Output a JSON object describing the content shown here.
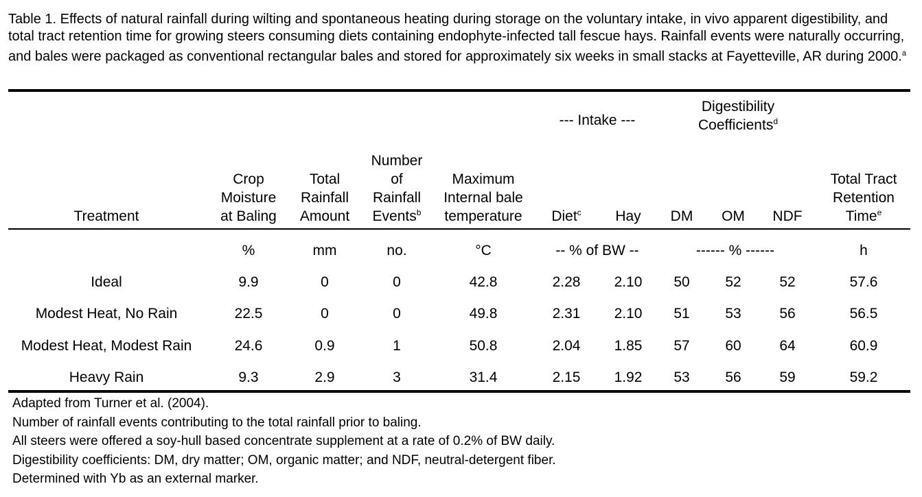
{
  "caption": {
    "text": "Table 1. Effects of natural rainfall during wilting and spontaneous heating during storage on the voluntary intake, in vivo apparent digestibility, and total tract retention time for growing steers consuming diets containing endophyte-infected tall fescue hays. Rainfall events were naturally occurring, and bales were packaged as conventional rectangular bales and stored for approximately six weeks in small stacks at Fayetteville, AR during 2000.",
    "sup": "a"
  },
  "group_headers": {
    "intake": "--- Intake ---",
    "digestibility_line1": "Digestibility",
    "digestibility_line2": "Coefficients",
    "digestibility_sup": "d"
  },
  "columns": {
    "treatment": "Treatment",
    "crop_moisture": [
      "Crop",
      "Moisture",
      "at Baling"
    ],
    "total_rainfall": [
      "Total",
      "Rainfall",
      "Amount"
    ],
    "rainfall_events": [
      "Number",
      "of",
      "Rainfall",
      "Events"
    ],
    "rainfall_events_sup": "b",
    "max_temp": [
      "Maximum",
      "Internal bale",
      "temperature"
    ],
    "diet": "Diet",
    "diet_sup": "c",
    "hay": "Hay",
    "dm": "DM",
    "om": "OM",
    "ndf": "NDF",
    "retention": [
      "Total Tract",
      "Retention",
      "Time"
    ],
    "retention_sup": "e"
  },
  "units": {
    "crop_moisture": "%",
    "total_rainfall": "mm",
    "rainfall_events": "no.",
    "max_temp": "°C",
    "intake": "-- % of BW --",
    "digestibility": "------ % ------",
    "retention": "h"
  },
  "rows": [
    {
      "treatment": "Ideal",
      "crop_moisture": "9.9",
      "total_rainfall": "0",
      "rainfall_events": "0",
      "max_temp": "42.8",
      "diet": "2.28",
      "hay": "2.10",
      "dm": "50",
      "om": "52",
      "ndf": "52",
      "retention": "57.6"
    },
    {
      "treatment": "Modest Heat, No Rain",
      "crop_moisture": "22.5",
      "total_rainfall": "0",
      "rainfall_events": "0",
      "max_temp": "49.8",
      "diet": "2.31",
      "hay": "2.10",
      "dm": "51",
      "om": "53",
      "ndf": "56",
      "retention": "56.5"
    },
    {
      "treatment": "Modest Heat, Modest Rain",
      "crop_moisture": "24.6",
      "total_rainfall": "0.9",
      "rainfall_events": "1",
      "max_temp": "50.8",
      "diet": "2.04",
      "hay": "1.85",
      "dm": "57",
      "om": "60",
      "ndf": "64",
      "retention": "60.9"
    },
    {
      "treatment": "Heavy Rain",
      "crop_moisture": "9.3",
      "total_rainfall": "2.9",
      "rainfall_events": "3",
      "max_temp": "31.4",
      "diet": "2.15",
      "hay": "1.92",
      "dm": "53",
      "om": "56",
      "ndf": "59",
      "retention": "59.2"
    }
  ],
  "footnotes": [
    "Adapted from Turner et al. (2004).",
    "Number of rainfall events contributing to the total rainfall prior to baling.",
    "All steers were offered a soy-hull based concentrate supplement at a rate of 0.2% of BW daily.",
    "Digestibility coefficients: DM, dry matter; OM, organic matter; and NDF, neutral-detergent fiber.",
    "Determined with Yb as an external marker."
  ]
}
